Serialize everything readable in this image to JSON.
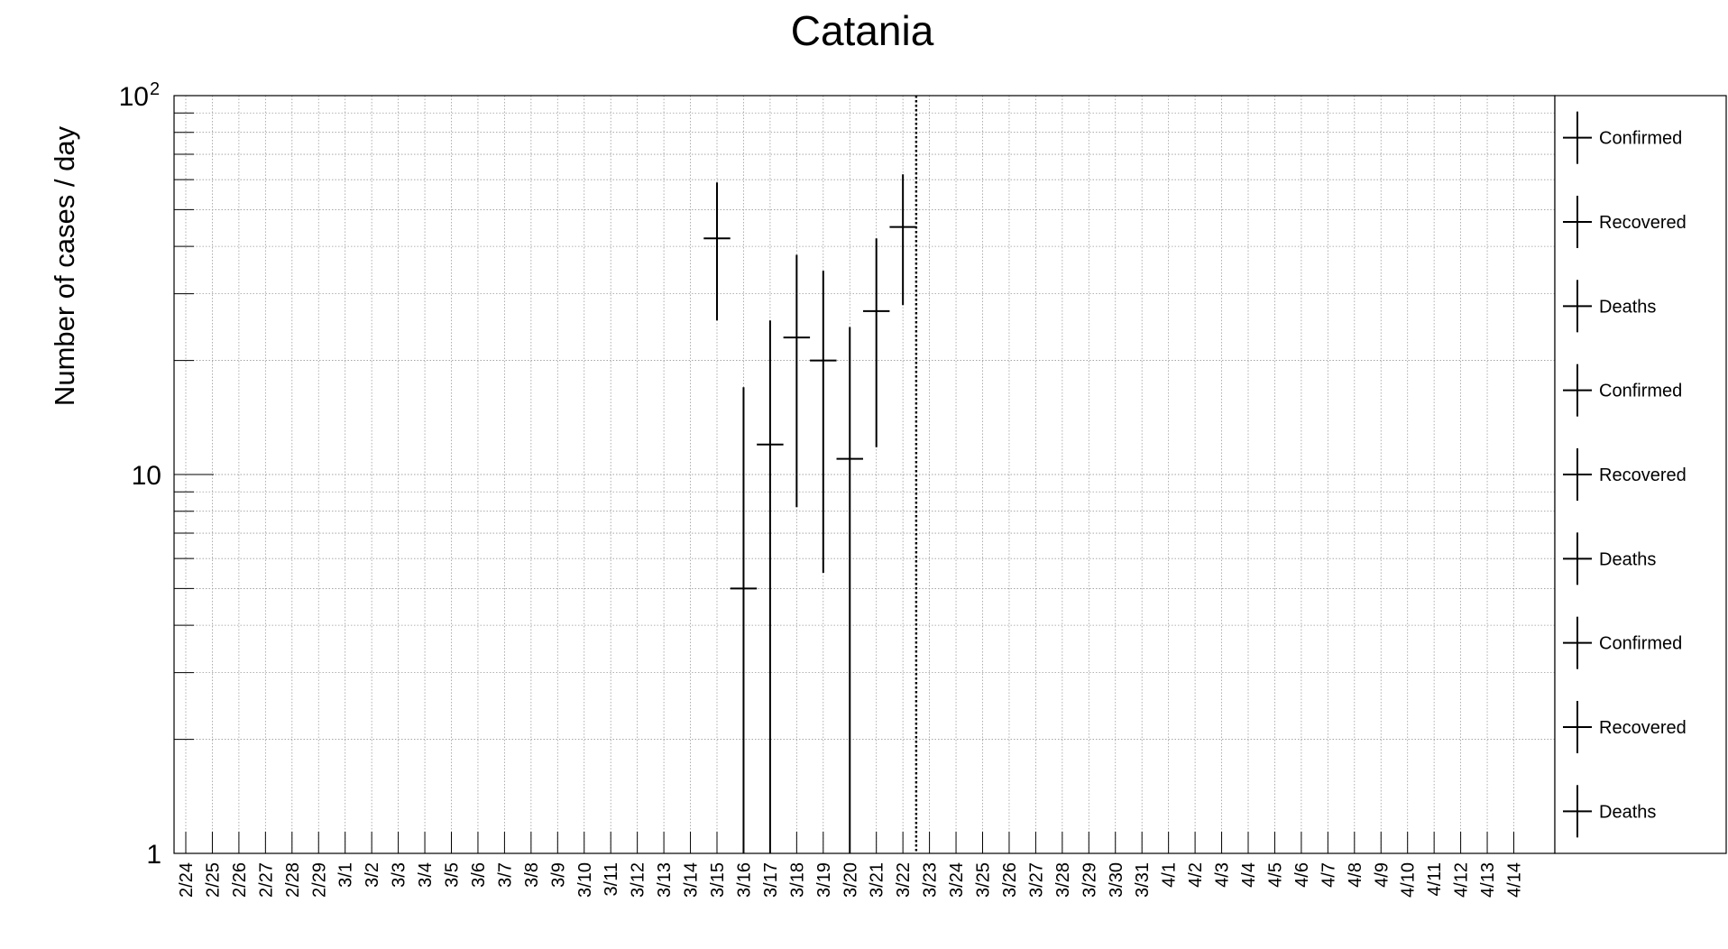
{
  "chart_data": {
    "type": "scatter",
    "title": "Catania",
    "xlabel": "",
    "ylabel": "Number of cases / day",
    "y_scale": "log",
    "ylim": [
      1,
      100
    ],
    "y_ticks": [
      {
        "value": 1,
        "label": "1"
      },
      {
        "value": 10,
        "label": "10"
      },
      {
        "value": 100,
        "label": "10",
        "exponent": "2"
      }
    ],
    "grid": true,
    "categories": [
      "2/24",
      "2/25",
      "2/26",
      "2/27",
      "2/28",
      "2/29",
      "3/1",
      "3/2",
      "3/3",
      "3/4",
      "3/5",
      "3/6",
      "3/7",
      "3/8",
      "3/9",
      "3/10",
      "3/11",
      "3/12",
      "3/13",
      "3/14",
      "3/15",
      "3/16",
      "3/17",
      "3/18",
      "3/19",
      "3/20",
      "3/21",
      "3/22",
      "3/23",
      "3/24",
      "3/25",
      "3/26",
      "3/27",
      "3/28",
      "3/29",
      "3/30",
      "3/31",
      "4/1",
      "4/2",
      "4/3",
      "4/4",
      "4/5",
      "4/6",
      "4/7",
      "4/8",
      "4/9",
      "4/10",
      "4/11",
      "4/12",
      "4/13",
      "4/14"
    ],
    "marker_line_after": "3/22",
    "series": [
      {
        "name": "Confirmed",
        "color": "#000000",
        "points": [
          {
            "x": "3/15",
            "y": 42,
            "y_low": 25.5,
            "y_high": 59
          },
          {
            "x": "3/16",
            "y": 5,
            "y_low": 1,
            "y_high": 17
          },
          {
            "x": "3/17",
            "y": 12,
            "y_low": 1,
            "y_high": 25.5
          },
          {
            "x": "3/18",
            "y": 23,
            "y_low": 8.2,
            "y_high": 38
          },
          {
            "x": "3/19",
            "y": 20,
            "y_low": 5.5,
            "y_high": 34.5
          },
          {
            "x": "3/20",
            "y": 11,
            "y_low": 1,
            "y_high": 24.5
          },
          {
            "x": "3/21",
            "y": 27,
            "y_low": 11.8,
            "y_high": 42
          },
          {
            "x": "3/22",
            "y": 45,
            "y_low": 28,
            "y_high": 62
          }
        ]
      }
    ],
    "legend_position": "right",
    "legend": [
      "Confirmed",
      "Recovered",
      "Deaths",
      "Confirmed",
      "Recovered",
      "Deaths",
      "Confirmed",
      "Recovered",
      "Deaths"
    ]
  }
}
